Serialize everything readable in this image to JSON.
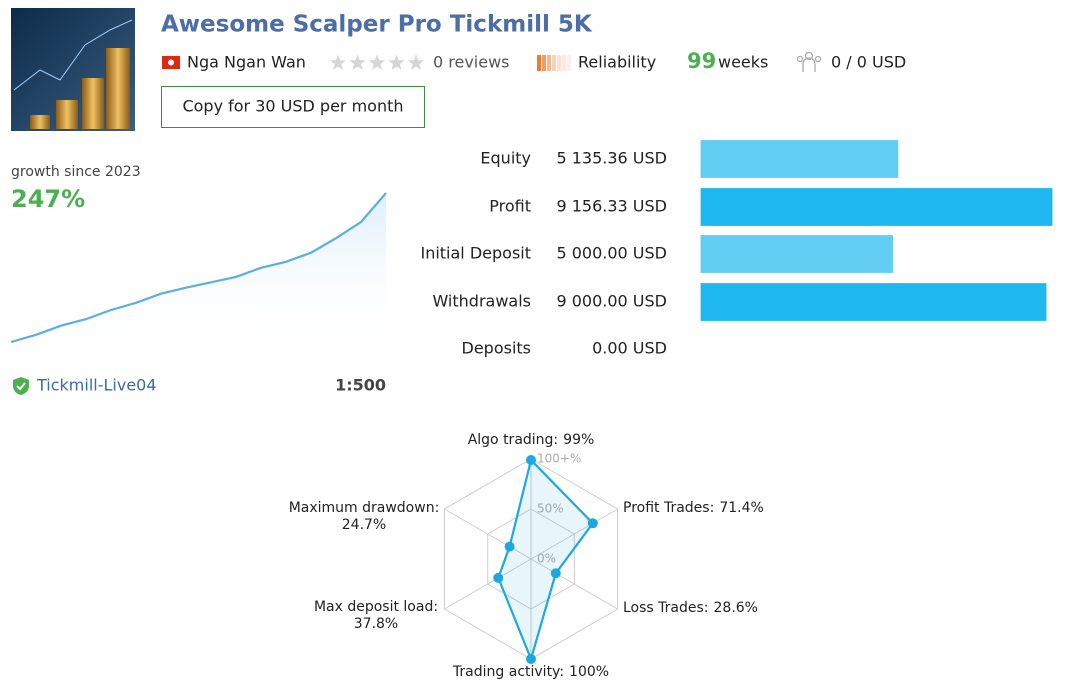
{
  "header": {
    "title": "Awesome Scalper Pro Tickmill 5K",
    "author": "Nga Ngan Wan",
    "rating": 0,
    "reviews": "0 reviews",
    "reliability": "Reliability",
    "weeks_value": "99",
    "weeks_unit": "weeks",
    "subscribers": "0 / 0 USD",
    "button": "Copy for 30 USD per month"
  },
  "growth": {
    "caption": "growth since 2023",
    "value": "247%"
  },
  "account": {
    "server": "Tickmill-Live04",
    "leverage": "1:500"
  },
  "chart_data": [
    {
      "type": "line",
      "color": "#5aaee0",
      "values": [
        0,
        12,
        27,
        38,
        53,
        65,
        80,
        90,
        99,
        108,
        123,
        133,
        148,
        172,
        199,
        247
      ]
    },
    {
      "type": "hbar",
      "categories": [
        "Equity",
        "Profit",
        "Initial Deposit",
        "Withdrawals",
        "Deposits"
      ],
      "values": [
        5135.36,
        9156.33,
        5000,
        9000,
        0
      ],
      "value_labels": [
        "5 135.36 USD",
        "9 156.33 USD",
        "5 000.00 USD",
        "9 000.00 USD",
        "0.00 USD"
      ],
      "colors": [
        "#62cdf3",
        "#1fb7ef",
        "#62cdf3",
        "#1fb7ef",
        "#62cdf3"
      ]
    },
    {
      "type": "radar",
      "color": "#1ea8e0",
      "categories": [
        "Algo trading:",
        "Profit Trades:",
        "Loss Trades:",
        "Trading activity:",
        "Max deposit load:",
        "Maximum drawdown:"
      ],
      "values": [
        99,
        71.4,
        28.6,
        100,
        37.8,
        24.7
      ],
      "value_labels": [
        "99%",
        "71.4%",
        "28.6%",
        "100%",
        "37.8%",
        "24.7%"
      ],
      "rlim": [
        0,
        100
      ],
      "rticks": [
        {
          "value": 0,
          "label": "0%"
        },
        {
          "value": 50,
          "label": "50%"
        },
        {
          "value": 100,
          "label": "100+%"
        }
      ]
    }
  ]
}
